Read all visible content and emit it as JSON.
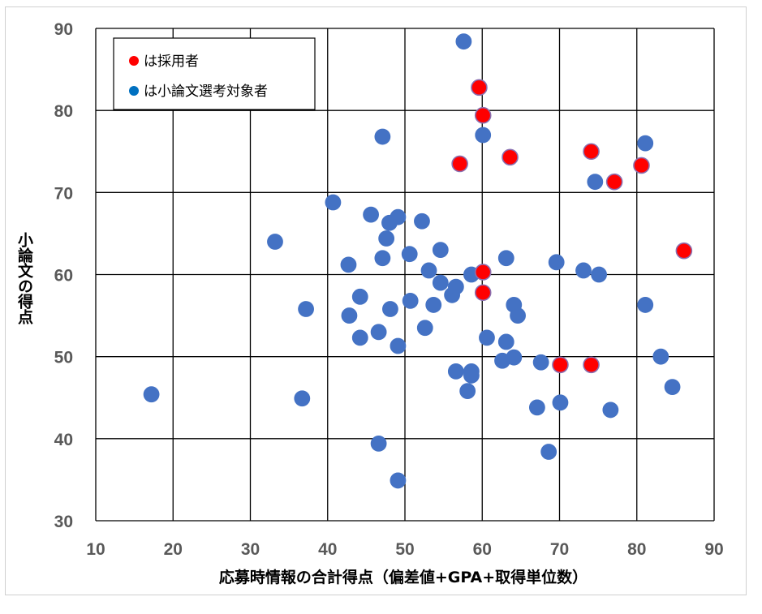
{
  "chart_data": {
    "type": "scatter",
    "xlabel": "応募時情報の合計得点（偏差値+GPA+取得単位数）",
    "ylabel": "小論文の得点",
    "xlim": [
      10,
      90
    ],
    "ylim": [
      30,
      90
    ],
    "x_ticks": [
      "10",
      "20",
      "30",
      "40",
      "50",
      "60",
      "70",
      "80",
      "90"
    ],
    "y_ticks": [
      "30",
      "40",
      "50",
      "60",
      "70",
      "80",
      "90"
    ],
    "grid": true,
    "legend_position": "top-left",
    "series": [
      {
        "name": "は小論文選考対象者",
        "color": "#4472c4",
        "points": [
          [
            17.2,
            45.4
          ],
          [
            33.2,
            64.0
          ],
          [
            36.7,
            44.9
          ],
          [
            37.2,
            55.8
          ],
          [
            40.7,
            68.8
          ],
          [
            42.7,
            61.2
          ],
          [
            42.8,
            55.0
          ],
          [
            44.2,
            57.3
          ],
          [
            44.2,
            52.3
          ],
          [
            45.6,
            67.3
          ],
          [
            46.6,
            53.0
          ],
          [
            46.6,
            39.4
          ],
          [
            47.1,
            76.8
          ],
          [
            47.1,
            62.0
          ],
          [
            47.6,
            64.4
          ],
          [
            48.0,
            66.3
          ],
          [
            48.1,
            55.8
          ],
          [
            49.1,
            67.0
          ],
          [
            49.1,
            51.3
          ],
          [
            49.1,
            34.9
          ],
          [
            50.6,
            62.5
          ],
          [
            50.7,
            56.8
          ],
          [
            52.2,
            66.5
          ],
          [
            52.6,
            53.5
          ],
          [
            53.1,
            60.5
          ],
          [
            53.7,
            56.3
          ],
          [
            54.6,
            63.0
          ],
          [
            54.6,
            59.0
          ],
          [
            56.1,
            57.5
          ],
          [
            56.6,
            58.5
          ],
          [
            56.6,
            48.2
          ],
          [
            57.6,
            88.4
          ],
          [
            58.1,
            45.8
          ],
          [
            58.6,
            60.0
          ],
          [
            58.6,
            48.2
          ],
          [
            58.6,
            47.7
          ],
          [
            60.1,
            77.0
          ],
          [
            60.6,
            52.3
          ],
          [
            62.6,
            49.5
          ],
          [
            63.1,
            62.0
          ],
          [
            63.1,
            51.8
          ],
          [
            64.1,
            56.3
          ],
          [
            64.1,
            49.9
          ],
          [
            64.6,
            55.0
          ],
          [
            67.1,
            43.8
          ],
          [
            67.6,
            49.3
          ],
          [
            68.6,
            38.4
          ],
          [
            69.6,
            61.5
          ],
          [
            70.1,
            44.4
          ],
          [
            73.1,
            60.5
          ],
          [
            74.6,
            71.3
          ],
          [
            75.1,
            60.0
          ],
          [
            76.6,
            43.5
          ],
          [
            81.1,
            76.0
          ],
          [
            81.1,
            56.3
          ],
          [
            83.1,
            50.0
          ],
          [
            84.6,
            46.3
          ]
        ]
      },
      {
        "name": "は採用者",
        "color": "#ff0000",
        "points": [
          [
            57.1,
            73.5
          ],
          [
            59.6,
            82.8
          ],
          [
            60.1,
            79.4
          ],
          [
            60.1,
            60.3
          ],
          [
            60.1,
            57.8
          ],
          [
            63.6,
            74.3
          ],
          [
            70.1,
            49.0
          ],
          [
            74.1,
            75.0
          ],
          [
            74.1,
            49.0
          ],
          [
            77.1,
            71.3
          ],
          [
            80.6,
            73.3
          ],
          [
            86.1,
            62.9
          ]
        ]
      }
    ],
    "legend": [
      {
        "label": "は採用者",
        "color": "#ff0000"
      },
      {
        "label": "は小論文選考対象者",
        "color": "#4472c4"
      }
    ]
  }
}
